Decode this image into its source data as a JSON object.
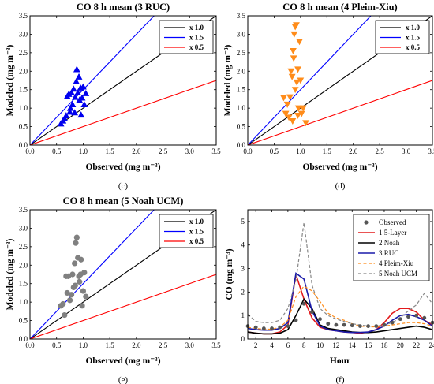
{
  "chart_data": [
    {
      "type": "scatter",
      "panel_label": "(c)",
      "title": "CO 8 h mean (3 RUC)",
      "xlabel": "Observed (mg m⁻³)",
      "ylabel": "Modeled (mg m⁻³)",
      "xlim": [
        0,
        3.5
      ],
      "ylim": [
        0,
        3.5
      ],
      "xticks": [
        "0.0",
        "0.5",
        "1.0",
        "1.5",
        "2.0",
        "2.5",
        "3.0",
        "3.5"
      ],
      "yticks": [
        "0.0",
        "0.5",
        "1.0",
        "1.5",
        "2.0",
        "2.5",
        "3.0",
        "3.5"
      ],
      "marker": "triangle-up",
      "marker_color": "#0000ee",
      "reference_lines": [
        {
          "name": "x 1.0",
          "slope": 1.0,
          "color": "#000000"
        },
        {
          "name": "x 1.5",
          "slope": 1.5,
          "color": "#0000ff"
        },
        {
          "name": "x 0.5",
          "slope": 0.5,
          "color": "#ff0000"
        }
      ],
      "legend_position": "top-right",
      "points": [
        [
          0.58,
          0.58
        ],
        [
          0.62,
          0.66
        ],
        [
          0.65,
          0.72
        ],
        [
          0.68,
          0.8
        ],
        [
          0.7,
          1.32
        ],
        [
          0.73,
          1.38
        ],
        [
          0.76,
          1.0
        ],
        [
          0.78,
          1.42
        ],
        [
          0.8,
          1.1
        ],
        [
          0.82,
          1.52
        ],
        [
          0.84,
          0.88
        ],
        [
          0.85,
          1.3
        ],
        [
          0.87,
          1.72
        ],
        [
          0.88,
          2.05
        ],
        [
          0.9,
          1.42
        ],
        [
          0.92,
          1.85
        ],
        [
          0.93,
          1.22
        ],
        [
          0.95,
          1.55
        ],
        [
          0.96,
          0.82
        ],
        [
          0.98,
          1.28
        ],
        [
          1.0,
          1.58
        ],
        [
          1.02,
          1.1
        ],
        [
          1.05,
          1.4
        ],
        [
          0.75,
          0.9
        ]
      ]
    },
    {
      "type": "scatter",
      "panel_label": "(d)",
      "title": "CO 8 h mean (4 Pleim-Xiu)",
      "xlabel": "Observed (mg m⁻³)",
      "ylabel": "Modeled (mg m⁻³)",
      "xlim": [
        0,
        3.5
      ],
      "ylim": [
        0,
        3.5
      ],
      "xticks": [
        "0.0",
        "0.5",
        "1.0",
        "1.5",
        "2.0",
        "2.5",
        "3.0",
        "3.5"
      ],
      "yticks": [
        "0.0",
        "0.5",
        "1.0",
        "1.5",
        "2.0",
        "2.5",
        "3.0",
        "3.5"
      ],
      "marker": "triangle-down",
      "marker_color": "#ff8c1a",
      "reference_lines": [
        {
          "name": "x 1.0",
          "slope": 1.0,
          "color": "#000000"
        },
        {
          "name": "x 1.5",
          "slope": 1.5,
          "color": "#0000ff"
        },
        {
          "name": "x 0.5",
          "slope": 0.5,
          "color": "#ff0000"
        }
      ],
      "legend_position": "top-right",
      "points": [
        [
          0.68,
          1.28
        ],
        [
          0.72,
          0.85
        ],
        [
          0.75,
          1.1
        ],
        [
          0.78,
          0.75
        ],
        [
          0.8,
          1.3
        ],
        [
          0.82,
          2.0
        ],
        [
          0.84,
          1.85
        ],
        [
          0.85,
          0.65
        ],
        [
          0.86,
          2.55
        ],
        [
          0.87,
          2.35
        ],
        [
          0.88,
          3.0
        ],
        [
          0.9,
          1.5
        ],
        [
          0.92,
          3.25
        ],
        [
          0.93,
          1.7
        ],
        [
          0.95,
          0.8
        ],
        [
          0.96,
          1.0
        ],
        [
          0.98,
          2.8
        ],
        [
          1.0,
          1.75
        ],
        [
          1.02,
          0.85
        ],
        [
          1.05,
          1.0
        ],
        [
          1.1,
          0.6
        ],
        [
          0.95,
          2.05
        ],
        [
          0.9,
          3.2
        ]
      ]
    },
    {
      "type": "scatter",
      "panel_label": "(e)",
      "title": "CO 8 h mean (5 Noah UCM)",
      "xlabel": "Observed (mg m⁻³)",
      "ylabel": "Modeled (mg m⁻³)",
      "xlim": [
        0,
        3.5
      ],
      "ylim": [
        0,
        3.5
      ],
      "xticks": [
        "0.0",
        "0.5",
        "1.0",
        "1.5",
        "2.0",
        "2.5",
        "3.0",
        "3.5"
      ],
      "yticks": [
        "0.0",
        "0.5",
        "1.0",
        "1.5",
        "2.0",
        "2.5",
        "3.0",
        "3.5"
      ],
      "marker": "circle",
      "marker_color": "#808080",
      "reference_lines": [
        {
          "name": "x 1.0",
          "slope": 1.0,
          "color": "#000000"
        },
        {
          "name": "x 1.5",
          "slope": 1.5,
          "color": "#0000ff"
        },
        {
          "name": "x 0.5",
          "slope": 0.5,
          "color": "#ff0000"
        }
      ],
      "legend_position": "top-right",
      "points": [
        [
          0.58,
          0.9
        ],
        [
          0.62,
          0.95
        ],
        [
          0.65,
          0.65
        ],
        [
          0.68,
          1.7
        ],
        [
          0.7,
          1.25
        ],
        [
          0.72,
          1.7
        ],
        [
          0.75,
          1.05
        ],
        [
          0.78,
          1.2
        ],
        [
          0.8,
          1.75
        ],
        [
          0.82,
          1.4
        ],
        [
          0.84,
          2.05
        ],
        [
          0.86,
          2.6
        ],
        [
          0.88,
          2.75
        ],
        [
          0.9,
          2.2
        ],
        [
          0.92,
          1.7
        ],
        [
          0.93,
          1.55
        ],
        [
          0.95,
          1.75
        ],
        [
          0.96,
          2.15
        ],
        [
          0.98,
          0.9
        ],
        [
          1.0,
          1.3
        ],
        [
          1.02,
          1.8
        ],
        [
          1.05,
          1.15
        ],
        [
          0.85,
          1.45
        ]
      ]
    },
    {
      "type": "line",
      "panel_label": "(f)",
      "title": "",
      "xlabel": "Hour",
      "ylabel": "CO (mg m⁻³)",
      "xlim": [
        1,
        24
      ],
      "ylim": [
        0,
        5.5
      ],
      "xticks": [
        "2",
        "4",
        "6",
        "8",
        "10",
        "12",
        "14",
        "16",
        "18",
        "20",
        "22",
        "24"
      ],
      "yticks": [
        "0",
        "1",
        "2",
        "3",
        "4",
        "5"
      ],
      "legend_position": "top-right",
      "x": [
        1,
        2,
        3,
        4,
        5,
        6,
        7,
        8,
        9,
        10,
        11,
        12,
        13,
        14,
        15,
        16,
        17,
        18,
        19,
        20,
        21,
        22,
        23,
        24
      ],
      "observed": {
        "name": "Observed",
        "color": "#555555",
        "values": [
          0.55,
          0.5,
          0.45,
          0.45,
          0.5,
          0.55,
          0.8,
          1.5,
          1.15,
          0.85,
          0.65,
          0.6,
          0.6,
          0.58,
          0.55,
          0.55,
          0.55,
          0.6,
          0.7,
          0.85,
          0.95,
          1.0,
          0.9,
          0.7
        ]
      },
      "series": [
        {
          "name": "1 5-Layer",
          "color": "#e31a1c",
          "dash": "solid",
          "width": 1.6,
          "values": [
            0.3,
            0.25,
            0.22,
            0.22,
            0.3,
            0.6,
            2.75,
            1.7,
            0.9,
            0.5,
            0.4,
            0.35,
            0.3,
            0.28,
            0.25,
            0.3,
            0.4,
            0.7,
            1.1,
            1.3,
            1.3,
            1.15,
            0.8,
            0.6
          ]
        },
        {
          "name": "2 Noah",
          "color": "#000000",
          "dash": "solid",
          "width": 1.6,
          "values": [
            0.3,
            0.25,
            0.22,
            0.22,
            0.25,
            0.4,
            1.0,
            1.7,
            1.3,
            0.6,
            0.45,
            0.4,
            0.35,
            0.3,
            0.28,
            0.28,
            0.3,
            0.35,
            0.4,
            0.45,
            0.5,
            0.55,
            0.5,
            0.4
          ]
        },
        {
          "name": "3 RUC",
          "color": "#1a1aaa",
          "dash": "solid",
          "width": 1.6,
          "values": [
            0.45,
            0.4,
            0.38,
            0.38,
            0.45,
            0.7,
            2.8,
            2.55,
            1.2,
            0.55,
            0.4,
            0.35,
            0.3,
            0.28,
            0.28,
            0.3,
            0.4,
            0.55,
            0.8,
            1.0,
            1.05,
            0.95,
            0.8,
            0.55
          ]
        },
        {
          "name": "4 Pleim-Xiu",
          "color": "#ff8c1a",
          "dash": "dashed",
          "width": 1.2,
          "values": [
            0.5,
            0.45,
            0.42,
            0.42,
            0.5,
            0.8,
            1.8,
            2.25,
            2.05,
            1.6,
            1.1,
            0.9,
            0.8,
            0.65,
            0.55,
            0.52,
            0.52,
            0.55,
            0.6,
            0.65,
            0.7,
            0.7,
            0.65,
            0.55
          ]
        },
        {
          "name": "5 Noah UCM",
          "color": "#888888",
          "dash": "dashed",
          "width": 1.2,
          "values": [
            1.05,
            0.75,
            0.7,
            0.7,
            0.8,
            1.3,
            2.5,
            4.95,
            2.3,
            1.3,
            1.0,
            0.85,
            0.75,
            0.65,
            0.6,
            0.55,
            0.55,
            0.6,
            0.7,
            0.9,
            1.2,
            1.45,
            1.95,
            1.5
          ]
        }
      ]
    }
  ]
}
